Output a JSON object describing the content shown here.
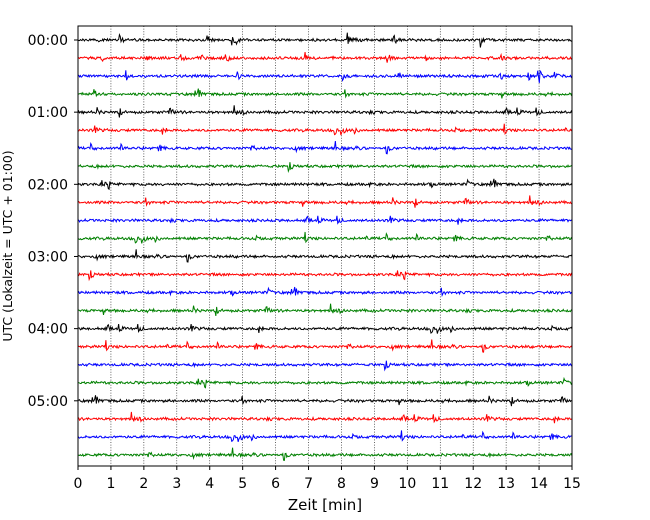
{
  "chart_data": {
    "type": "line",
    "title": "",
    "xlabel": "Zeit  [min]",
    "ylabel": "UTC (Lokalzeit = UTC + 01:00)",
    "xlim": [
      0,
      15
    ],
    "x_ticks": [
      "0",
      "1",
      "2",
      "3",
      "4",
      "5",
      "6",
      "7",
      "8",
      "9",
      "10",
      "11",
      "12",
      "13",
      "14",
      "15"
    ],
    "y_tick_labels": [
      "00:00",
      "01:00",
      "02:00",
      "03:00",
      "04:00",
      "05:00"
    ],
    "trace_interval_minutes": 15,
    "trace_count": 24,
    "trace_colors": [
      "#000000",
      "#ff0000",
      "#0000ff",
      "#008000"
    ],
    "grid": "vertical dotted lines at each minute",
    "series": [
      {
        "row": 0,
        "label": "00:00",
        "color": "#000000"
      },
      {
        "row": 1,
        "label": "00:15",
        "color": "#ff0000"
      },
      {
        "row": 2,
        "label": "00:30",
        "color": "#0000ff"
      },
      {
        "row": 3,
        "label": "00:45",
        "color": "#008000"
      },
      {
        "row": 4,
        "label": "01:00",
        "color": "#000000"
      },
      {
        "row": 5,
        "label": "01:15",
        "color": "#ff0000"
      },
      {
        "row": 6,
        "label": "01:30",
        "color": "#0000ff"
      },
      {
        "row": 7,
        "label": "01:45",
        "color": "#008000"
      },
      {
        "row": 8,
        "label": "02:00",
        "color": "#000000"
      },
      {
        "row": 9,
        "label": "02:15",
        "color": "#ff0000"
      },
      {
        "row": 10,
        "label": "02:30",
        "color": "#0000ff"
      },
      {
        "row": 11,
        "label": "02:45",
        "color": "#008000"
      },
      {
        "row": 12,
        "label": "03:00",
        "color": "#000000"
      },
      {
        "row": 13,
        "label": "03:15",
        "color": "#ff0000"
      },
      {
        "row": 14,
        "label": "03:30",
        "color": "#0000ff"
      },
      {
        "row": 15,
        "label": "03:45",
        "color": "#008000"
      },
      {
        "row": 16,
        "label": "04:00",
        "color": "#000000"
      },
      {
        "row": 17,
        "label": "04:15",
        "color": "#ff0000"
      },
      {
        "row": 18,
        "label": "04:30",
        "color": "#0000ff"
      },
      {
        "row": 19,
        "label": "04:45",
        "color": "#008000"
      },
      {
        "row": 20,
        "label": "05:00",
        "color": "#000000"
      },
      {
        "row": 21,
        "label": "05:15",
        "color": "#ff0000"
      },
      {
        "row": 22,
        "label": "05:30",
        "color": "#0000ff"
      },
      {
        "row": 23,
        "label": "05:45",
        "color": "#008000"
      }
    ]
  }
}
